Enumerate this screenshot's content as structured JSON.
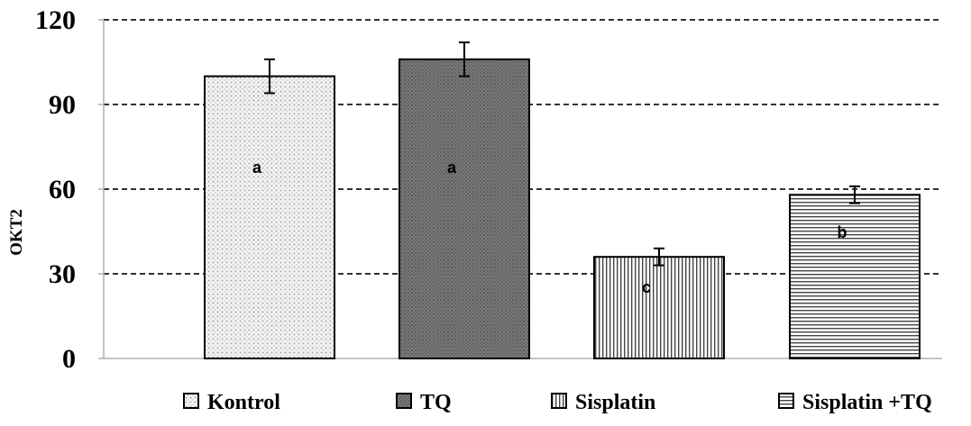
{
  "chart_data": {
    "type": "bar",
    "title": "",
    "xlabel": "",
    "ylabel": "OKT2",
    "ylim": [
      0,
      120
    ],
    "yticks": [
      0,
      30,
      60,
      90,
      120
    ],
    "grid": true,
    "legend_position": "bottom",
    "categories": [
      "Kontrol",
      "TQ",
      "Sisplatin",
      "Sisplatin +TQ"
    ],
    "values": [
      100,
      106,
      36,
      58
    ],
    "errors": [
      6,
      6,
      3,
      3
    ],
    "letters": [
      "a",
      "a",
      "c",
      "b"
    ],
    "patterns": [
      "dots-light",
      "dots-dark",
      "vertical-lines",
      "horizontal-lines"
    ]
  }
}
